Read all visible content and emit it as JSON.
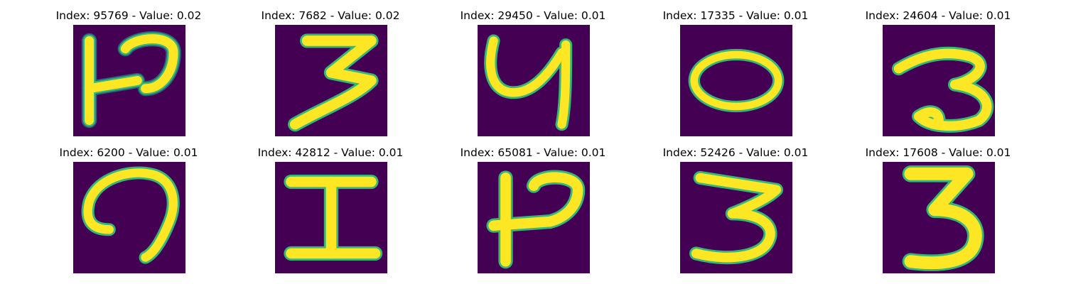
{
  "panels": [
    {
      "title": "Index: 95769 - Value: 0.02",
      "image": "emnist-glyph-resembling-letter-P-with-crossbar"
    },
    {
      "title": "Index: 7682 - Value: 0.02",
      "image": "emnist-glyph-resembling-digit-3"
    },
    {
      "title": "Index: 29450 - Value: 0.01",
      "image": "emnist-glyph-resembling-letter-y"
    },
    {
      "title": "Index: 17335 - Value: 0.01",
      "image": "emnist-glyph-resembling-digit-0"
    },
    {
      "title": "Index: 24604 - Value: 0.01",
      "image": "emnist-glyph-resembling-digit-3"
    },
    {
      "title": "Index: 6200 - Value: 0.01",
      "image": "emnist-glyph-resembling-rotated-letter-G"
    },
    {
      "title": "Index: 42812 - Value: 0.01",
      "image": "emnist-glyph-resembling-letter-I"
    },
    {
      "title": "Index: 65081 - Value: 0.01",
      "image": "emnist-glyph-resembling-letter-P-with-crossbar"
    },
    {
      "title": "Index: 52426 - Value: 0.01",
      "image": "emnist-glyph-resembling-digit-3"
    },
    {
      "title": "Index: 17608 - Value: 0.01",
      "image": "emnist-glyph-resembling-digit-3"
    }
  ],
  "colors": {
    "background": "#440154",
    "stroke_core": "#fde725",
    "stroke_mid": "#b5de2b",
    "stroke_edge": "#35b779",
    "stroke_outer": "#21918c"
  }
}
